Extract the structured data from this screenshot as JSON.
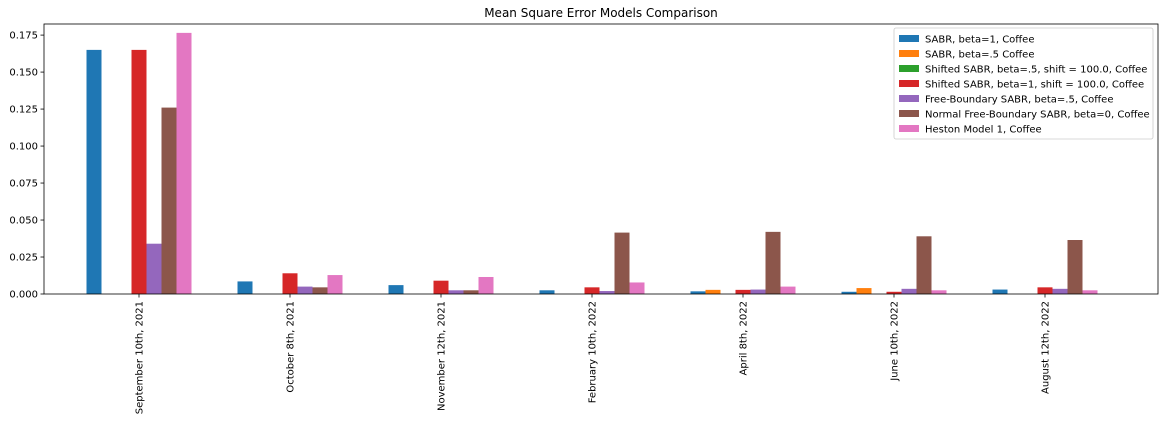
{
  "chart_data": {
    "type": "bar",
    "title": "Mean Square Error Models Comparison",
    "xlabel": "",
    "ylabel": "",
    "ylim": [
      0,
      0.1825
    ],
    "yticks": [
      0.0,
      0.025,
      0.05,
      0.075,
      0.1,
      0.125,
      0.15,
      0.175
    ],
    "ytick_labels": [
      "0.000",
      "0.025",
      "0.050",
      "0.075",
      "0.100",
      "0.125",
      "0.150",
      "0.175"
    ],
    "grid": false,
    "legend_position": "top-right",
    "categories": [
      "September 10th, 2021",
      "October 8th, 2021",
      "November 12th, 2021",
      "February 10th, 2022",
      "April 8th, 2022",
      "June 10th, 2022",
      "August 12th, 2022"
    ],
    "series": [
      {
        "name": "SABR, beta=1, Coffee",
        "color": "#1f77b4",
        "values": [
          0.165,
          0.0085,
          0.006,
          0.0025,
          0.0018,
          0.0015,
          0.003
        ]
      },
      {
        "name": "SABR, beta=.5 Coffee",
        "color": "#ff7f0e",
        "values": [
          0.0,
          0.0,
          0.0,
          0.0,
          0.0028,
          0.004,
          0.0
        ]
      },
      {
        "name": "Shifted SABR, beta=.5, shift = 100.0, Coffee",
        "color": "#2ca02c",
        "values": [
          0.0,
          0.0,
          0.0,
          0.0,
          0.0,
          0.0,
          0.0
        ]
      },
      {
        "name": "Shifted SABR, beta=1, shift = 100.0, Coffee",
        "color": "#d62728",
        "values": [
          0.165,
          0.014,
          0.009,
          0.0045,
          0.0028,
          0.0015,
          0.0045
        ]
      },
      {
        "name": "Free-Boundary SABR, beta=.5, Coffee",
        "color": "#9467bd",
        "values": [
          0.034,
          0.005,
          0.0025,
          0.002,
          0.003,
          0.0035,
          0.0035
        ]
      },
      {
        "name": "Normal Free-Boundary SABR, beta=0, Coffee",
        "color": "#8c564b",
        "values": [
          0.126,
          0.0045,
          0.0025,
          0.0415,
          0.042,
          0.039,
          0.0365
        ]
      },
      {
        "name": "Heston Model 1, Coffee",
        "color": "#e377c2",
        "values": [
          0.1765,
          0.0128,
          0.0115,
          0.0078,
          0.005,
          0.0025,
          0.0025
        ]
      }
    ]
  }
}
